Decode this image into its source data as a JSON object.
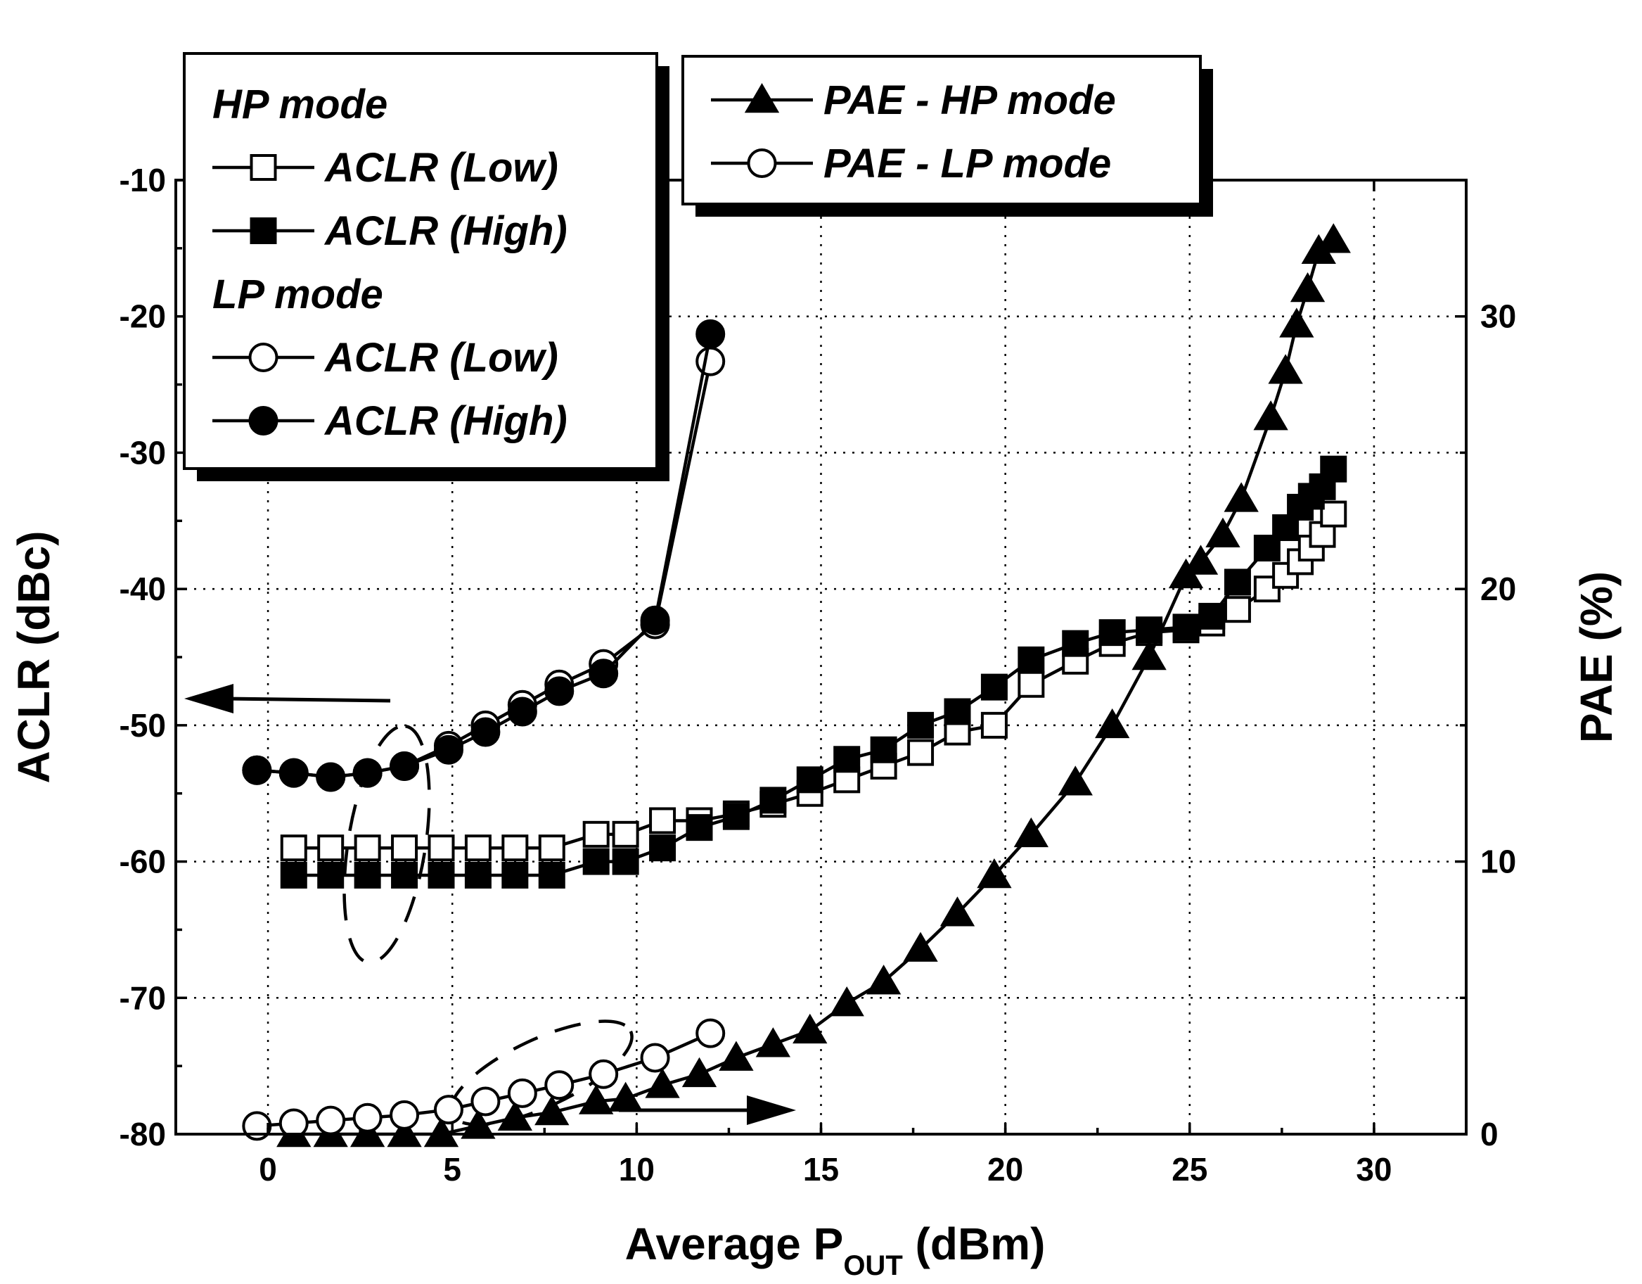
{
  "chart_data": {
    "type": "line",
    "xlabel": "Average P",
    "xlabel_sub": "OUT",
    "xlabel_unit": " (dBm)",
    "ylabel_left": "ACLR (dBc)",
    "ylabel_right": "PAE (%)",
    "xlim": [
      -2.5,
      32.5
    ],
    "ylim_left": [
      -80,
      -10
    ],
    "ylim_right": [
      0,
      35
    ],
    "x_ticks": [
      0,
      5,
      10,
      15,
      20,
      25,
      30
    ],
    "y_left_ticks": [
      -80,
      -70,
      -60,
      -50,
      -40,
      -30,
      -20,
      -10
    ],
    "y_right_ticks": [
      0,
      10,
      20,
      30
    ],
    "grid": true,
    "legend_groups": [
      {
        "position": "top-left",
        "entries": [
          {
            "type": "heading",
            "label": "HP mode"
          },
          {
            "type": "series",
            "label": "ACLR (Low)",
            "marker": "square-open"
          },
          {
            "type": "series",
            "label": "ACLR (High)",
            "marker": "square-filled"
          },
          {
            "type": "heading",
            "label": "LP mode"
          },
          {
            "type": "series",
            "label": "ACLR (Low)",
            "marker": "circle-open"
          },
          {
            "type": "series",
            "label": "ACLR (High)",
            "marker": "circle-filled"
          }
        ]
      },
      {
        "position": "top-center",
        "entries": [
          {
            "type": "series",
            "label": "PAE - HP mode",
            "marker": "triangle-filled"
          },
          {
            "type": "series",
            "label": "PAE - LP mode",
            "marker": "circle-open"
          }
        ]
      }
    ],
    "series": [
      {
        "name": "HP mode ACLR (Low)",
        "axis": "left",
        "marker": "square-open",
        "x": [
          0.7,
          1.7,
          2.7,
          3.7,
          4.7,
          5.7,
          6.7,
          7.7,
          8.9,
          9.7,
          10.7,
          11.7,
          12.7,
          13.7,
          14.7,
          15.7,
          16.7,
          17.7,
          18.7,
          19.7,
          20.7,
          21.9,
          22.9,
          23.9,
          24.9,
          25.6,
          26.3,
          27.1,
          27.6,
          28.0,
          28.3,
          28.6,
          28.9
        ],
        "y": [
          -59,
          -59,
          -59,
          -59,
          -59,
          -59,
          -59,
          -59,
          -58,
          -58,
          -57,
          -57,
          -56.5,
          -55.8,
          -55,
          -54,
          -53,
          -52,
          -50.5,
          -50,
          -47,
          -45.3,
          -44,
          -43.2,
          -43,
          -42.5,
          -41.5,
          -40,
          -39,
          -38,
          -37,
          -36,
          -34.5
        ]
      },
      {
        "name": "HP mode ACLR (High)",
        "axis": "left",
        "marker": "square-filled",
        "x": [
          0.7,
          1.7,
          2.7,
          3.7,
          4.7,
          5.7,
          6.7,
          7.7,
          8.9,
          9.7,
          10.7,
          11.7,
          12.7,
          13.7,
          14.7,
          15.7,
          16.7,
          17.7,
          18.7,
          19.7,
          20.7,
          21.9,
          22.9,
          23.9,
          24.9,
          25.6,
          26.3,
          27.1,
          27.6,
          28.0,
          28.3,
          28.6,
          28.9
        ],
        "y": [
          -61,
          -61,
          -61,
          -61,
          -61,
          -61,
          -61,
          -61,
          -60,
          -60,
          -59,
          -57.5,
          -56.7,
          -55.5,
          -54,
          -52.5,
          -51.8,
          -50,
          -49,
          -47.2,
          -45.2,
          -44,
          -43.2,
          -43,
          -42.8,
          -42,
          -39.5,
          -37,
          -35.5,
          -34,
          -33.2,
          -32.5,
          -31.2
        ]
      },
      {
        "name": "LP mode ACLR (Low)",
        "axis": "left",
        "marker": "circle-open",
        "x": [
          -0.3,
          0.7,
          1.7,
          2.7,
          3.7,
          4.9,
          5.9,
          6.9,
          7.9,
          9.1,
          10.5,
          12.0
        ],
        "y": [
          -53.3,
          -53.5,
          -53.8,
          -53.5,
          -53,
          -51.5,
          -50,
          -48.5,
          -47,
          -45.5,
          -42.6,
          -23.3
        ]
      },
      {
        "name": "LP mode ACLR (High)",
        "axis": "left",
        "marker": "circle-filled",
        "x": [
          -0.3,
          0.7,
          1.7,
          2.7,
          3.7,
          4.9,
          5.9,
          6.9,
          7.9,
          9.1,
          10.5,
          12.0
        ],
        "y": [
          -53.3,
          -53.5,
          -53.8,
          -53.5,
          -53,
          -51.8,
          -50.5,
          -49,
          -47.5,
          -46.2,
          -42.3,
          -21.3
        ]
      },
      {
        "name": "PAE - HP mode",
        "axis": "right",
        "marker": "triangle-filled",
        "x": [
          0.7,
          1.7,
          2.7,
          3.7,
          4.7,
          5.7,
          6.7,
          7.7,
          8.9,
          9.7,
          10.7,
          11.7,
          12.7,
          13.7,
          14.7,
          15.7,
          16.7,
          17.7,
          18.7,
          19.7,
          20.7,
          21.9,
          22.9,
          23.9,
          24.9,
          25.3,
          25.9,
          26.4,
          27.2,
          27.6,
          27.9,
          28.2,
          28.5,
          28.9
        ],
        "y": [
          0,
          0,
          0,
          0,
          0,
          0.3,
          0.6,
          0.8,
          1.2,
          1.3,
          1.8,
          2.2,
          2.8,
          3.3,
          3.8,
          4.8,
          5.6,
          6.8,
          8.1,
          9.5,
          11,
          12.9,
          15,
          17.5,
          20.5,
          21,
          22,
          23.3,
          26.3,
          28,
          29.7,
          31,
          32.4,
          32.8
        ]
      },
      {
        "name": "PAE - LP mode",
        "axis": "right",
        "marker": "circle-open",
        "x": [
          -0.3,
          0.7,
          1.7,
          2.7,
          3.7,
          4.9,
          5.9,
          6.9,
          7.9,
          9.1,
          10.5,
          12.0
        ],
        "y": [
          0.3,
          0.4,
          0.5,
          0.6,
          0.7,
          0.9,
          1.2,
          1.5,
          1.8,
          2.2,
          2.8,
          3.7
        ]
      }
    ],
    "annotations": [
      {
        "type": "dashed-ellipse",
        "target": "LP mode ACLR curves, read against left axis"
      },
      {
        "type": "dashed-ellipse",
        "target": "LP mode PAE curve, read against right axis"
      }
    ]
  }
}
